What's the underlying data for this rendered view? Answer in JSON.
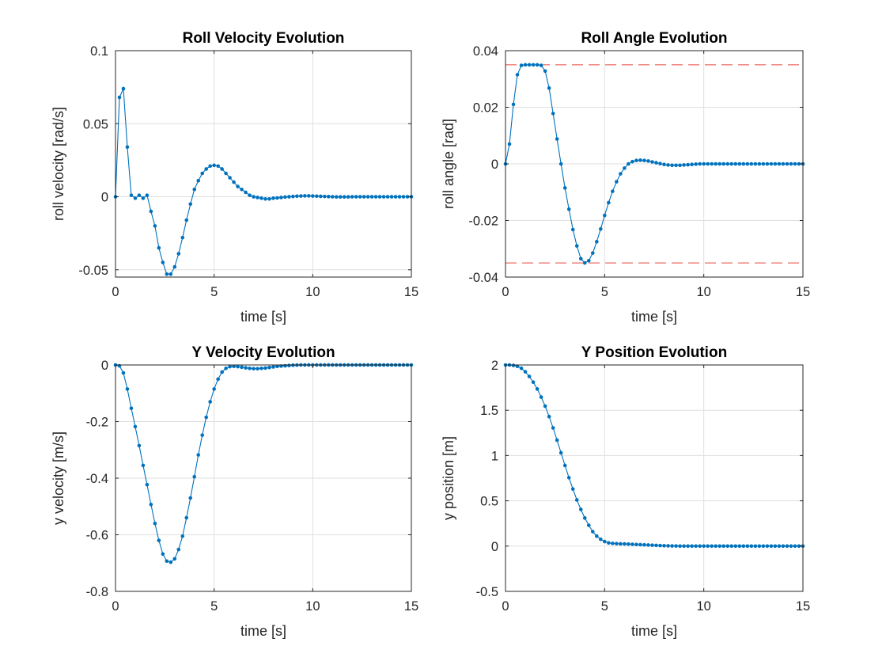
{
  "colors": {
    "series": "#0072BD",
    "reference": "#E8483E",
    "grid": "#dfdfdf",
    "axis": "#262626"
  },
  "chart_data": [
    {
      "type": "line",
      "title": "Roll Velocity Evolution",
      "xlabel": "time [s]",
      "ylabel": "roll velocity [rad/s]",
      "xlim": [
        0,
        15
      ],
      "ylim": [
        -0.055,
        0.1
      ],
      "xticks": [
        0,
        5,
        10,
        15
      ],
      "xtick_labels": [
        "0",
        "5",
        "10",
        "15"
      ],
      "yticks": [
        -0.05,
        0,
        0.05,
        0.1
      ],
      "ytick_labels": [
        "-0.05",
        "0",
        "0.05",
        "0.1"
      ],
      "grid": true,
      "marker": "dot",
      "x": [
        0,
        0.2,
        0.4,
        0.6,
        0.8,
        1,
        1.2,
        1.4,
        1.6,
        1.8,
        2,
        2.2,
        2.4,
        2.6,
        2.8,
        3,
        3.2,
        3.4,
        3.6,
        3.8,
        4,
        4.2,
        4.4,
        4.6,
        4.8,
        5,
        5.2,
        5.4,
        5.6,
        5.8,
        6,
        6.2,
        6.4,
        6.6,
        6.8,
        7,
        7.2,
        7.4,
        7.6,
        7.8,
        8,
        8.2,
        8.4,
        8.6,
        8.8,
        9,
        9.2,
        9.4,
        9.6,
        9.8,
        10,
        10.2,
        10.4,
        10.6,
        10.8,
        11,
        11.2,
        11.4,
        11.6,
        11.8,
        12,
        12.2,
        12.4,
        12.6,
        12.8,
        13,
        13.2,
        13.4,
        13.6,
        13.8,
        14,
        14.2,
        14.4,
        14.6,
        14.8,
        15
      ],
      "y": [
        0,
        0.068,
        0.074,
        0.034,
        0.001,
        -0.001,
        0.001,
        -0.001,
        0.001,
        -0.01,
        -0.02,
        -0.035,
        -0.045,
        -0.053,
        -0.053,
        -0.048,
        -0.039,
        -0.028,
        -0.016,
        -0.005,
        0.005,
        0.011,
        0.016,
        0.019,
        0.021,
        0.0215,
        0.021,
        0.019,
        0.016,
        0.013,
        0.01,
        0.007,
        0.005,
        0.003,
        0.001,
        0,
        -0.0005,
        -0.001,
        -0.0015,
        -0.0015,
        -0.001,
        -0.0008,
        -0.0005,
        -0.0002,
        0,
        0.0002,
        0.0004,
        0.0005,
        0.0006,
        0.0006,
        0.0005,
        0.0004,
        0.0003,
        0.0002,
        0.0001,
        0,
        -0.0001,
        -0.0001,
        -0.0001,
        -0.0001,
        0,
        0,
        0,
        0,
        0,
        0,
        0,
        0,
        0,
        0,
        0,
        0,
        0,
        0,
        0,
        0
      ]
    },
    {
      "type": "line",
      "title": "Roll Angle Evolution",
      "xlabel": "time [s]",
      "ylabel": "roll angle [rad]",
      "xlim": [
        0,
        15
      ],
      "ylim": [
        -0.04,
        0.04
      ],
      "xticks": [
        0,
        5,
        10,
        15
      ],
      "xtick_labels": [
        "0",
        "5",
        "10",
        "15"
      ],
      "yticks": [
        -0.04,
        -0.02,
        0,
        0.02,
        0.04
      ],
      "ytick_labels": [
        "-0.04",
        "-0.02",
        "0",
        "0.02",
        "0.04"
      ],
      "grid": true,
      "marker": "dot",
      "reference_lines": [
        0.035,
        -0.035
      ],
      "x": [
        0,
        0.2,
        0.4,
        0.6,
        0.8,
        1,
        1.2,
        1.4,
        1.6,
        1.8,
        2,
        2.2,
        2.4,
        2.6,
        2.8,
        3,
        3.2,
        3.4,
        3.6,
        3.8,
        4,
        4.2,
        4.4,
        4.6,
        4.8,
        5,
        5.2,
        5.4,
        5.6,
        5.8,
        6,
        6.2,
        6.4,
        6.6,
        6.8,
        7,
        7.2,
        7.4,
        7.6,
        7.8,
        8,
        8.2,
        8.4,
        8.6,
        8.8,
        9,
        9.2,
        9.4,
        9.6,
        9.8,
        10,
        10.2,
        10.4,
        10.6,
        10.8,
        11,
        11.2,
        11.4,
        11.6,
        11.8,
        12,
        12.2,
        12.4,
        12.6,
        12.8,
        13,
        13.2,
        13.4,
        13.6,
        13.8,
        14,
        14.2,
        14.4,
        14.6,
        14.8,
        15
      ],
      "y": [
        0,
        0.007,
        0.021,
        0.0315,
        0.0348,
        0.035,
        0.035,
        0.035,
        0.035,
        0.0348,
        0.0328,
        0.0268,
        0.0178,
        0.0088,
        0.0,
        -0.0085,
        -0.016,
        -0.0232,
        -0.029,
        -0.0335,
        -0.035,
        -0.0342,
        -0.0315,
        -0.0275,
        -0.023,
        -0.0182,
        -0.0137,
        -0.0097,
        -0.0063,
        -0.0035,
        -0.0015,
        0,
        0.0008,
        0.0012,
        0.0013,
        0.0012,
        0.001,
        0.0007,
        0.0004,
        0.0001,
        -0.0002,
        -0.0004,
        -0.0005,
        -0.0005,
        -0.0005,
        -0.0004,
        -0.0003,
        -0.0002,
        -0.0001,
        0,
        0,
        0,
        0,
        0,
        0,
        0,
        0,
        0,
        0,
        0,
        0,
        0,
        0,
        0,
        0,
        0,
        0,
        0,
        0,
        0,
        0,
        0,
        0,
        0,
        0,
        0
      ]
    },
    {
      "type": "line",
      "title": "Y Velocity Evolution",
      "xlabel": "time [s]",
      "ylabel": "y velocity [m/s]",
      "xlim": [
        0,
        15
      ],
      "ylim": [
        -0.8,
        0
      ],
      "xticks": [
        0,
        5,
        10,
        15
      ],
      "xtick_labels": [
        "0",
        "5",
        "10",
        "15"
      ],
      "yticks": [
        -0.8,
        -0.6,
        -0.4,
        -0.2,
        0
      ],
      "ytick_labels": [
        "-0.8",
        "-0.6",
        "-0.4",
        "-0.2",
        "0"
      ],
      "grid": true,
      "marker": "dot",
      "x": [
        0,
        0.2,
        0.4,
        0.6,
        0.8,
        1,
        1.2,
        1.4,
        1.6,
        1.8,
        2,
        2.2,
        2.4,
        2.6,
        2.8,
        3,
        3.2,
        3.4,
        3.6,
        3.8,
        4,
        4.2,
        4.4,
        4.6,
        4.8,
        5,
        5.2,
        5.4,
        5.6,
        5.8,
        6,
        6.2,
        6.4,
        6.6,
        6.8,
        7,
        7.2,
        7.4,
        7.6,
        7.8,
        8,
        8.2,
        8.4,
        8.6,
        8.8,
        9,
        9.2,
        9.4,
        9.6,
        9.8,
        10,
        10.2,
        10.4,
        10.6,
        10.8,
        11,
        11.2,
        11.4,
        11.6,
        11.8,
        12,
        12.2,
        12.4,
        12.6,
        12.8,
        13,
        13.2,
        13.4,
        13.6,
        13.8,
        14,
        14.2,
        14.4,
        14.6,
        14.8,
        15
      ],
      "y": [
        0,
        -0.003,
        -0.028,
        -0.085,
        -0.153,
        -0.218,
        -0.285,
        -0.355,
        -0.423,
        -0.493,
        -0.56,
        -0.62,
        -0.668,
        -0.693,
        -0.697,
        -0.685,
        -0.652,
        -0.605,
        -0.54,
        -0.47,
        -0.395,
        -0.318,
        -0.248,
        -0.185,
        -0.13,
        -0.085,
        -0.05,
        -0.025,
        -0.012,
        -0.006,
        -0.005,
        -0.006,
        -0.008,
        -0.01,
        -0.012,
        -0.013,
        -0.013,
        -0.012,
        -0.011,
        -0.009,
        -0.007,
        -0.005,
        -0.004,
        -0.003,
        -0.002,
        -0.001,
        -0.0005,
        0,
        0,
        0,
        0,
        0,
        0,
        0,
        0,
        0,
        0,
        0,
        0,
        0,
        0,
        0,
        0,
        0,
        0,
        0,
        0,
        0,
        0,
        0,
        0,
        0,
        0,
        0,
        0,
        0
      ]
    },
    {
      "type": "line",
      "title": "Y Position Evolution",
      "xlabel": "time [s]",
      "ylabel": "y position [m]",
      "xlim": [
        0,
        15
      ],
      "ylim": [
        -0.5,
        2
      ],
      "xticks": [
        0,
        5,
        10,
        15
      ],
      "xtick_labels": [
        "0",
        "5",
        "10",
        "15"
      ],
      "yticks": [
        -0.5,
        0,
        0.5,
        1,
        1.5,
        2
      ],
      "ytick_labels": [
        "-0.5",
        "0",
        "0.5",
        "1",
        "1.5",
        "2"
      ],
      "grid": true,
      "marker": "dot",
      "x": [
        0,
        0.2,
        0.4,
        0.6,
        0.8,
        1,
        1.2,
        1.4,
        1.6,
        1.8,
        2,
        2.2,
        2.4,
        2.6,
        2.8,
        3,
        3.2,
        3.4,
        3.6,
        3.8,
        4,
        4.2,
        4.4,
        4.6,
        4.8,
        5,
        5.2,
        5.4,
        5.6,
        5.8,
        6,
        6.2,
        6.4,
        6.6,
        6.8,
        7,
        7.2,
        7.4,
        7.6,
        7.8,
        8,
        8.2,
        8.4,
        8.6,
        8.8,
        9,
        9.2,
        9.4,
        9.6,
        9.8,
        10,
        10.2,
        10.4,
        10.6,
        10.8,
        11,
        11.2,
        11.4,
        11.6,
        11.8,
        12,
        12.2,
        12.4,
        12.6,
        12.8,
        13,
        13.2,
        13.4,
        13.6,
        13.8,
        14,
        14.2,
        14.4,
        14.6,
        14.8,
        15
      ],
      "y": [
        2,
        2,
        1.995,
        1.985,
        1.963,
        1.925,
        1.873,
        1.81,
        1.735,
        1.645,
        1.545,
        1.43,
        1.305,
        1.17,
        1.03,
        0.89,
        0.755,
        0.63,
        0.51,
        0.405,
        0.31,
        0.23,
        0.16,
        0.11,
        0.075,
        0.05,
        0.035,
        0.03,
        0.027,
        0.025,
        0.024,
        0.022,
        0.02,
        0.018,
        0.016,
        0.014,
        0.012,
        0.01,
        0.008,
        0.006,
        0.004,
        0.003,
        0.002,
        0.001,
        0,
        0,
        0,
        0,
        0,
        0,
        0,
        0,
        0,
        0,
        0,
        0,
        0,
        0,
        0,
        0,
        0,
        0,
        0,
        0,
        0,
        0,
        0,
        0,
        0,
        0,
        0,
        0,
        0,
        0,
        0,
        0
      ]
    }
  ]
}
